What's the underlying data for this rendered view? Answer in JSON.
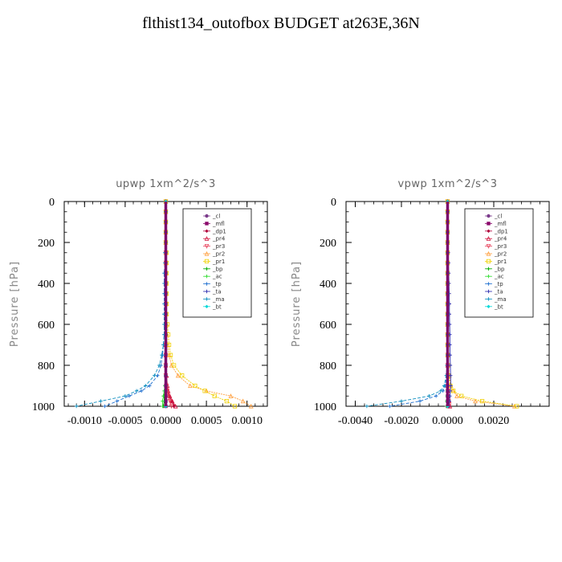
{
  "title": "flthist134_outofbox  BUDGET at263E,36N",
  "colors": {
    "_cl": "#7a3a8a",
    "_mfl": "#8b0a6b",
    "_dp1": "#b0003a",
    "_pr4": "#d0103a",
    "_pr3": "#e8405a",
    "_pr2": "#ffa040",
    "_pr1": "#f0d000",
    "_bp": "#00aa00",
    "_ac": "#33dd33",
    "_tp": "#2070d0",
    "_ta": "#3030b0",
    "_ma": "#1090c0",
    "_bt": "#00d8d8"
  },
  "legend_entries": [
    "_cl",
    "_mfl",
    "_dp1",
    "_pr4",
    "_pr3",
    "_pr2",
    "_pr1",
    "_bp",
    "_ac",
    "_tp",
    "_ta",
    "_ma",
    "_bt"
  ],
  "chart_data": [
    {
      "type": "line",
      "title": "upwp   1xm^2/s^3",
      "ylabel": "Pressure [hPa]",
      "xlim": [
        -0.00125,
        0.00125
      ],
      "ylim": [
        1000,
        0
      ],
      "xticks": [
        -0.001,
        -0.0005,
        0.0,
        0.0005,
        0.001
      ],
      "xtick_labels": [
        "-0.0010",
        "-0.0005",
        "0.0000",
        "0.0005",
        "0.0010"
      ],
      "yticks": [
        0,
        200,
        400,
        600,
        800,
        1000
      ],
      "ytick_labels": [
        "0",
        "200",
        "400",
        "600",
        "800",
        "1000"
      ],
      "legend_position": "top-right",
      "pressure": [
        0,
        50,
        100,
        150,
        200,
        250,
        300,
        350,
        400,
        450,
        500,
        550,
        600,
        650,
        700,
        750,
        800,
        850,
        900,
        925,
        950,
        975,
        1000
      ],
      "series": [
        {
          "name": "_cl",
          "x": [
            0,
            0,
            0,
            0,
            0,
            0,
            0,
            0,
            0,
            0,
            0,
            0,
            0,
            0,
            0,
            0,
            0,
            0,
            0,
            0,
            0,
            0,
            0
          ]
        },
        {
          "name": "_mfl",
          "x": [
            0,
            0,
            0,
            0,
            0,
            0,
            0,
            0,
            0,
            0,
            0,
            0,
            0,
            0,
            0,
            0,
            0,
            0,
            0,
            0,
            0,
            0,
            0
          ]
        },
        {
          "name": "_dp1",
          "x": [
            0,
            0,
            0,
            0,
            0,
            0,
            0,
            0,
            0,
            0,
            0,
            0,
            0,
            0,
            0,
            0,
            0,
            0,
            1e-05,
            2e-05,
            4e-05,
            7e-05,
            0.0001
          ]
        },
        {
          "name": "_pr4",
          "x": [
            0,
            0,
            0,
            0,
            0,
            0,
            0,
            0,
            0,
            0,
            0,
            0,
            0,
            0,
            0,
            0,
            0,
            1e-05,
            2e-05,
            3e-05,
            5e-05,
            8e-05,
            0.00012
          ]
        },
        {
          "name": "_pr3",
          "x": [
            0,
            0,
            0,
            0,
            0,
            0,
            0,
            0,
            0,
            0,
            0,
            0,
            0,
            0,
            0,
            0,
            0,
            0,
            1e-05,
            2e-05,
            3e-05,
            5e-05,
            7e-05
          ]
        },
        {
          "name": "_pr2",
          "x": [
            0,
            0,
            0,
            0,
            0,
            0,
            0,
            0,
            0,
            0,
            0,
            0,
            1e-05,
            1e-05,
            2e-05,
            4e-05,
            7e-05,
            0.00015,
            0.0003,
            0.0005,
            0.0008,
            0.00095,
            0.00105
          ]
        },
        {
          "name": "_pr1",
          "x": [
            0,
            0,
            0,
            0,
            0,
            1e-05,
            1e-05,
            1e-05,
            1e-05,
            1e-05,
            1e-05,
            1e-05,
            2e-05,
            3e-05,
            4e-05,
            6e-05,
            0.0001,
            0.0002,
            0.00036,
            0.00048,
            0.0006,
            0.00075,
            0.00085
          ]
        },
        {
          "name": "_bp",
          "x": [
            0,
            0,
            0,
            0,
            0,
            0,
            0,
            0,
            0,
            0,
            0,
            0,
            0,
            0,
            0,
            0,
            0,
            0,
            -1e-05,
            -1e-05,
            -2e-05,
            -2e-05,
            -3e-05
          ]
        },
        {
          "name": "_ac",
          "x": [
            0,
            0,
            0,
            0,
            0,
            0,
            0,
            0,
            0,
            0,
            0,
            0,
            0,
            0,
            0,
            0,
            0,
            0,
            -1e-05,
            -2e-05,
            -3e-05,
            -4e-05,
            -4e-05
          ]
        },
        {
          "name": "_tp",
          "x": [
            0,
            0,
            0,
            0,
            0,
            -1e-05,
            -1e-05,
            -2e-05,
            -2e-05,
            -2e-05,
            -2e-05,
            -2e-05,
            -2e-05,
            -2e-05,
            -3e-05,
            -4e-05,
            -6e-05,
            -0.0001,
            -0.0002,
            -0.0003,
            -0.00045,
            -0.0006,
            -0.00075
          ]
        },
        {
          "name": "_ta",
          "x": [
            0,
            0,
            0,
            0,
            0,
            0,
            0,
            0,
            0,
            0,
            0,
            0,
            0,
            0,
            0,
            0,
            0,
            0,
            0,
            0,
            0,
            0,
            0
          ]
        },
        {
          "name": "_ma",
          "x": [
            0,
            0,
            0,
            0,
            0,
            -1e-05,
            -1e-05,
            -1e-05,
            -1e-05,
            -1e-05,
            -1e-05,
            -2e-05,
            -2e-05,
            -2e-05,
            -3e-05,
            -5e-05,
            -8e-05,
            -0.00014,
            -0.00025,
            -0.00036,
            -0.0005,
            -0.0008,
            -0.0011
          ]
        },
        {
          "name": "_bt",
          "x": [
            0,
            0,
            0,
            0,
            0,
            0,
            0,
            0,
            0,
            0,
            0,
            0,
            0,
            0,
            0,
            0,
            0,
            0,
            0,
            0,
            0,
            0,
            0
          ]
        }
      ]
    },
    {
      "type": "line",
      "title": "vpwp   1xm^2/s^3",
      "ylabel": "Pressure [hPa]",
      "xlim": [
        -0.0044,
        0.0044
      ],
      "ylim": [
        1000,
        0
      ],
      "xticks": [
        -0.004,
        -0.002,
        0.0,
        0.002
      ],
      "xtick_labels": [
        "-0.0040",
        "-0.0020",
        "0.0000",
        "0.0020"
      ],
      "yticks": [
        0,
        200,
        400,
        600,
        800,
        1000
      ],
      "ytick_labels": [
        "0",
        "200",
        "400",
        "600",
        "800",
        "1000"
      ],
      "legend_position": "top-right",
      "pressure": [
        0,
        50,
        100,
        150,
        200,
        250,
        300,
        350,
        400,
        450,
        500,
        550,
        600,
        650,
        700,
        750,
        800,
        850,
        900,
        925,
        950,
        975,
        1000
      ],
      "series": [
        {
          "name": "_cl",
          "x": [
            0,
            0,
            0,
            0,
            0,
            0,
            0,
            0,
            0,
            0,
            0,
            0,
            0,
            0,
            0,
            0,
            0,
            0,
            0,
            0,
            0,
            0,
            0
          ]
        },
        {
          "name": "_mfl",
          "x": [
            0,
            0,
            0,
            0,
            0,
            0,
            0,
            0,
            0,
            0,
            0,
            0,
            0,
            0,
            0,
            0,
            0,
            0,
            0,
            0,
            0,
            0,
            0
          ]
        },
        {
          "name": "_dp1",
          "x": [
            0,
            0,
            0,
            0,
            0,
            0,
            0,
            0,
            0,
            0,
            0,
            0,
            0,
            0,
            0,
            0,
            0,
            0,
            0,
            2e-05,
            4e-05,
            6e-05,
            8e-05
          ]
        },
        {
          "name": "_pr4",
          "x": [
            0,
            0,
            0,
            0,
            0,
            0,
            0,
            0,
            0,
            0,
            0,
            0,
            0,
            0,
            0,
            0,
            0,
            0,
            1e-05,
            2e-05,
            4e-05,
            7e-05,
            0.0001
          ]
        },
        {
          "name": "_pr3",
          "x": [
            0,
            0,
            0,
            0,
            0,
            0,
            0,
            0,
            0,
            0,
            0,
            0,
            0,
            0,
            0,
            0,
            0,
            0,
            1e-05,
            2e-05,
            3e-05,
            5e-05,
            7e-05
          ]
        },
        {
          "name": "_pr2",
          "x": [
            0,
            0,
            0,
            0,
            0,
            0,
            0,
            0,
            0,
            0,
            0,
            0,
            0,
            0,
            0,
            2e-05,
            4e-05,
            8e-05,
            0.00015,
            0.00025,
            0.0004,
            0.0012,
            0.0029
          ]
        },
        {
          "name": "_pr1",
          "x": [
            0,
            0,
            0,
            0,
            0,
            0,
            0,
            0,
            0,
            0,
            0,
            0,
            0,
            0,
            0,
            1e-05,
            3e-05,
            6e-05,
            0.00012,
            0.00025,
            0.0006,
            0.0015,
            0.003
          ]
        },
        {
          "name": "_bp",
          "x": [
            0,
            0,
            0,
            0,
            0,
            0,
            0,
            0,
            0,
            0,
            0,
            0,
            0,
            0,
            0,
            0,
            0,
            0,
            0,
            0,
            -1e-05,
            -2e-05,
            -3e-05
          ]
        },
        {
          "name": "_ac",
          "x": [
            0,
            0,
            0,
            0,
            0,
            0,
            0,
            0,
            0,
            0,
            0,
            0,
            0,
            0,
            0,
            0,
            0,
            0,
            0,
            0,
            -2e-05,
            -3e-05,
            -4e-05
          ]
        },
        {
          "name": "_tp",
          "x": [
            0,
            0,
            0,
            0,
            0,
            0,
            0,
            0,
            0,
            0,
            0,
            0,
            0,
            0,
            0,
            0,
            -2e-05,
            -4e-05,
            -0.0001,
            -0.0002,
            -0.0005,
            -0.0012,
            -0.0025
          ]
        },
        {
          "name": "_ta",
          "x": [
            0,
            0,
            0,
            0,
            0,
            3e-05,
            4e-05,
            5e-05,
            6e-05,
            7e-05,
            8e-05,
            8e-05,
            9e-05,
            0.0001,
            0.0001,
            0.00011,
            0.00012,
            0.00013,
            0.00014,
            0.00012,
            0.0001,
            8e-05,
            5e-05
          ]
        },
        {
          "name": "_ma",
          "x": [
            0,
            0,
            0,
            0,
            0,
            0,
            0,
            0,
            0,
            0,
            0,
            0,
            0,
            0,
            0,
            -1e-05,
            -3e-05,
            -6e-05,
            -0.00015,
            -0.0003,
            -0.0008,
            -0.002,
            -0.0035
          ]
        },
        {
          "name": "_bt",
          "x": [
            0,
            0,
            0,
            0,
            0,
            0,
            0,
            0,
            0,
            0,
            0,
            0,
            0,
            0,
            0,
            0,
            0,
            0,
            0,
            0,
            0,
            0,
            0
          ]
        }
      ]
    }
  ]
}
